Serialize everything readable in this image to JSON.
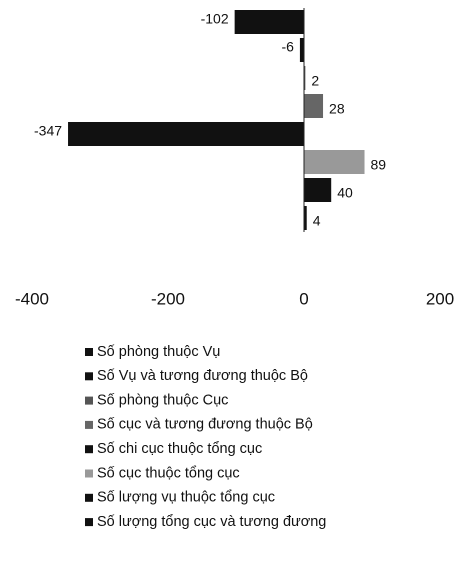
{
  "chart_data": {
    "type": "bar",
    "orientation": "horizontal",
    "series": [
      {
        "name": "Số phòng thuộc Vụ",
        "color": "#111111",
        "values": [
          -102
        ]
      },
      {
        "name": "Số Vụ và tương đương thuộc Bộ",
        "color": "#111111",
        "values": [
          -6
        ]
      },
      {
        "name": "Số phòng thuộc Cục",
        "color": "#555555",
        "values": [
          2
        ]
      },
      {
        "name": "Số cục và tương đương thuộc Bộ",
        "color": "#666666",
        "values": [
          28
        ]
      },
      {
        "name": "Số chi cục thuộc tổng cục",
        "color": "#111111",
        "values": [
          -347
        ]
      },
      {
        "name": "Số cục thuộc tổng cục",
        "color": "#999999",
        "values": [
          89
        ]
      },
      {
        "name": "Số lượng vụ thuộc tổng cục",
        "color": "#111111",
        "values": [
          40
        ]
      },
      {
        "name": "Số lượng tổng cục và tương đương",
        "color": "#111111",
        "values": [
          4
        ]
      }
    ],
    "xlim": [
      -400,
      200
    ],
    "xticks": [
      -400,
      -200,
      0,
      200
    ],
    "grid": false,
    "legend": "bottom"
  }
}
